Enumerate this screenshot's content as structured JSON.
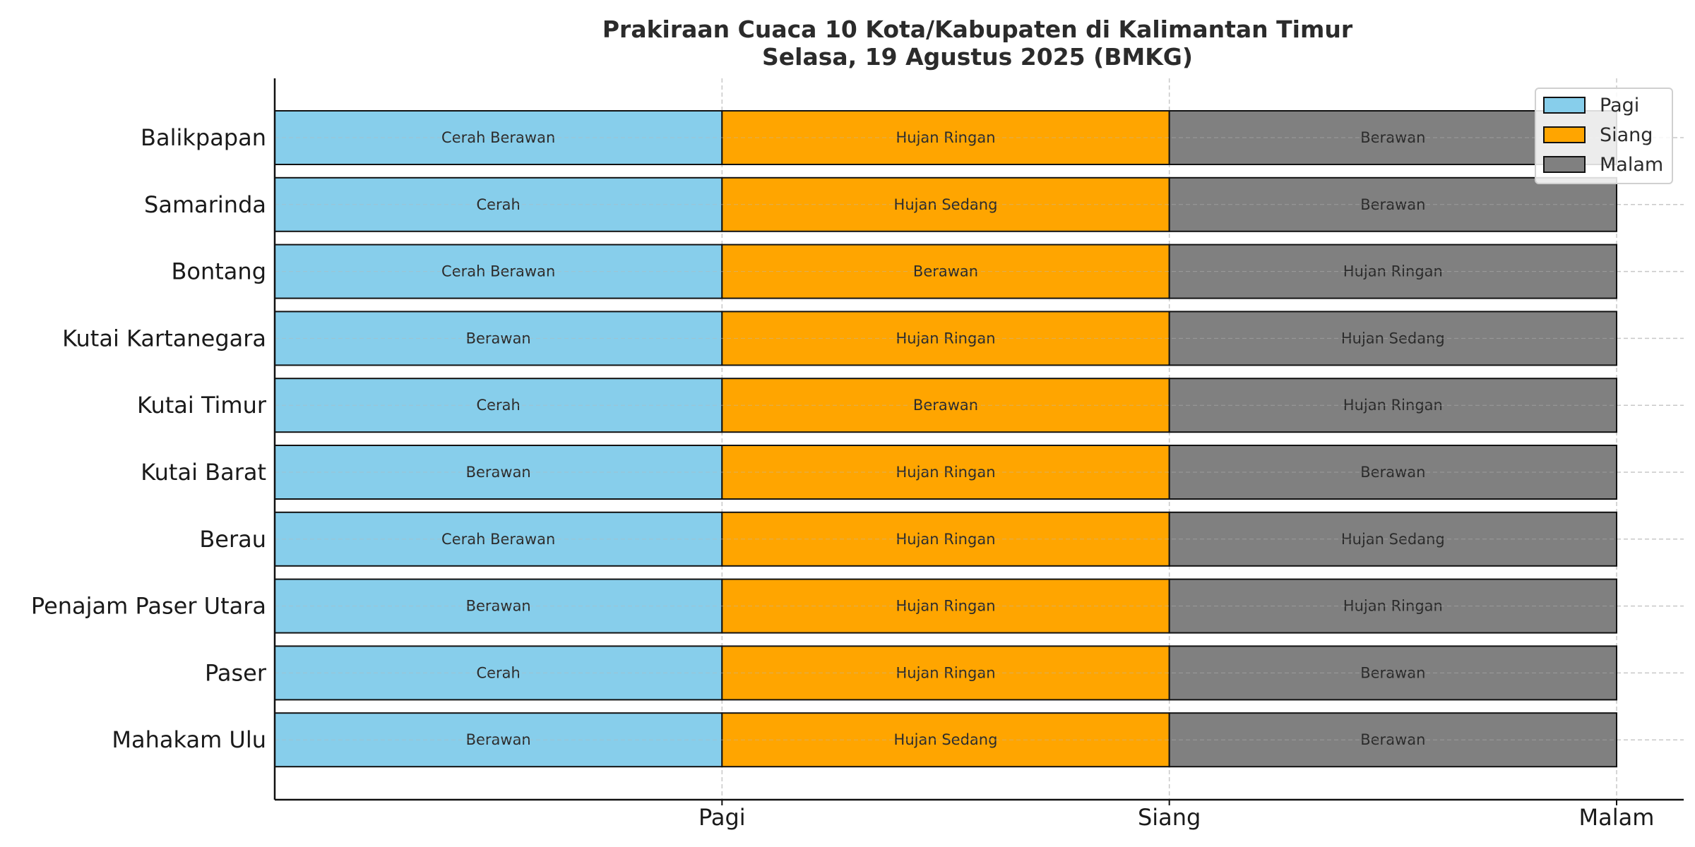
{
  "chart_data": {
    "type": "bar",
    "orientation": "horizontal-stacked",
    "title": "Prakiraan Cuaca 10 Kota/Kabupaten di Kalimantan Timur",
    "subtitle": "Selasa, 19 Agustus 2025 (BMKG)",
    "xlabel": "",
    "ylabel": "",
    "grid": true,
    "legend_position": "top-right",
    "x_ticks": [
      "Pagi",
      "Siang",
      "Malam"
    ],
    "categories": [
      "Balikpapan",
      "Samarinda",
      "Bontang",
      "Kutai Kartanegara",
      "Kutai Timur",
      "Kutai Barat",
      "Berau",
      "Penajam Paser Utara",
      "Paser",
      "Mahakam Ulu"
    ],
    "series": [
      {
        "name": "Pagi",
        "color": "#87ceeb",
        "values": [
          1,
          1,
          1,
          1,
          1,
          1,
          1,
          1,
          1,
          1
        ],
        "labels": [
          "Cerah Berawan",
          "Cerah",
          "Cerah Berawan",
          "Berawan",
          "Cerah",
          "Berawan",
          "Cerah Berawan",
          "Berawan",
          "Cerah",
          "Berawan"
        ]
      },
      {
        "name": "Siang",
        "color": "#ffa500",
        "values": [
          1,
          1,
          1,
          1,
          1,
          1,
          1,
          1,
          1,
          1
        ],
        "labels": [
          "Hujan Ringan",
          "Hujan Sedang",
          "Berawan",
          "Hujan Ringan",
          "Berawan",
          "Hujan Ringan",
          "Hujan Ringan",
          "Hujan Ringan",
          "Hujan Ringan",
          "Hujan Sedang"
        ]
      },
      {
        "name": "Malam",
        "color": "#808080",
        "values": [
          1,
          1,
          1,
          1,
          1,
          1,
          1,
          1,
          1,
          1
        ],
        "labels": [
          "Berawan",
          "Berawan",
          "Hujan Ringan",
          "Hujan Sedang",
          "Hujan Ringan",
          "Berawan",
          "Hujan Sedang",
          "Hujan Ringan",
          "Berawan",
          "Berawan"
        ]
      }
    ]
  }
}
